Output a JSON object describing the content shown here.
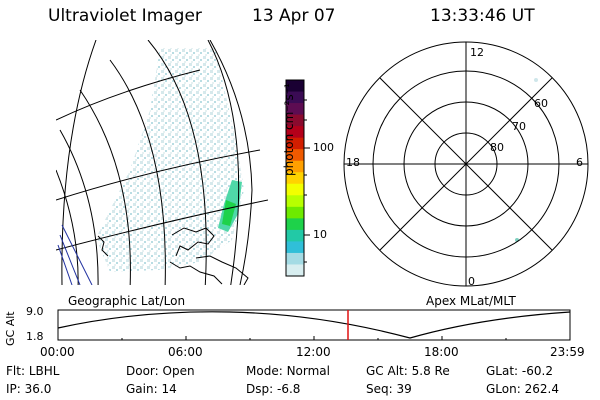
{
  "header": {
    "title": "Ultraviolet Imager",
    "date": "13 Apr 07",
    "time": "13:33:46 UT"
  },
  "colorbar": {
    "label": "photon cm⁻²s⁻¹",
    "ticks": [
      "100",
      "10"
    ],
    "colors": [
      "#1a0033",
      "#3a0b54",
      "#5d0c52",
      "#8a0a2e",
      "#b4001a",
      "#d21e00",
      "#ef5a00",
      "#ffa000",
      "#ffd300",
      "#f2ff00",
      "#b8ff00",
      "#6eea00",
      "#1ed24a",
      "#22c9a6",
      "#30bfd8",
      "#a4dbe4",
      "#d8eef0"
    ]
  },
  "polar": {
    "hour_labels": [
      "12",
      "18",
      "6",
      "0"
    ],
    "lat_labels": [
      "60",
      "70",
      "80"
    ]
  },
  "map_labels": {
    "left": "Geographic Lat/Lon",
    "right": "Apex MLat/MLT"
  },
  "altitude_plot": {
    "axis_label": "GC Alt",
    "ymax": "9.0",
    "ymin": "1.8",
    "xticks": [
      "00:00",
      "06:00",
      "12:00",
      "18:00",
      "23:59"
    ],
    "marker_color": "#e01010"
  },
  "info": {
    "row1": [
      {
        "key": "Flt:",
        "val": "LBHL"
      },
      {
        "key": "Door:",
        "val": "Open"
      },
      {
        "key": "Mode:",
        "val": "Normal"
      },
      {
        "key": "GC Alt:",
        "val": "5.8 Re"
      },
      {
        "key": "GLat:",
        "val": "-60.2"
      }
    ],
    "row2": [
      {
        "key": "IP:",
        "val": "36.0"
      },
      {
        "key": "Gain:",
        "val": "14"
      },
      {
        "key": "Dsp:",
        "val": "-6.8"
      },
      {
        "key": "Seq:",
        "val": "39"
      },
      {
        "key": "GLon:",
        "val": "262.4"
      }
    ]
  }
}
